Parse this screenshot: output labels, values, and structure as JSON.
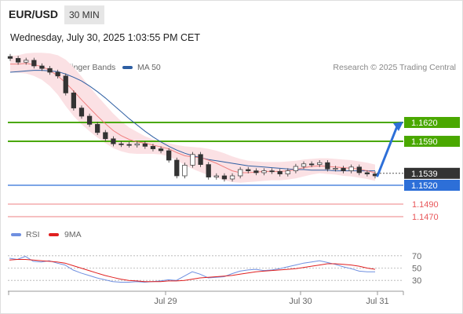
{
  "header": {
    "pair": "EUR/USD",
    "timeframe": "30 MIN",
    "datetime": "Wednesday, July 30, 2025 1:03:55 PM CET"
  },
  "legend": {
    "ma20": "MA 20 + Bollinger Bands",
    "ma50": "MA 50",
    "credit": "Research © 2025 Trading Central",
    "rsi": "RSI",
    "ma9": "9MA"
  },
  "colors": {
    "ma20": "#f08080",
    "ma50": "#2e5fa3",
    "band_fill": "#fbe1e4",
    "resistance": "#4aa800",
    "pivot": "#2d6fd8",
    "support": "#e8575a",
    "current": "#333333",
    "rsi": "#6f8fe0",
    "ma9": "#e02020"
  },
  "chart_data": [
    {
      "type": "candlestick",
      "title": "EUR/USD 30 MIN",
      "x_ticks": [
        "Jul 29",
        "Jul 30",
        "Jul 31"
      ],
      "ylim": [
        1.145,
        1.169
      ],
      "levels": [
        {
          "value": 1.162,
          "label": "1.1620",
          "kind": "resistance"
        },
        {
          "value": 1.159,
          "label": "1.1590",
          "kind": "resistance"
        },
        {
          "value": 1.1539,
          "label": "1.1539",
          "kind": "current"
        },
        {
          "value": 1.152,
          "label": "1.1520",
          "kind": "pivot"
        },
        {
          "value": 1.149,
          "label": "1.1490",
          "kind": "support"
        },
        {
          "value": 1.147,
          "label": "1.1470",
          "kind": "support"
        }
      ],
      "close_series": [
        1.1722,
        1.1716,
        1.1719,
        1.171,
        1.1706,
        1.17,
        1.1694,
        1.1667,
        1.1643,
        1.163,
        1.1617,
        1.1604,
        1.1594,
        1.1586,
        1.1585,
        1.1584,
        1.1586,
        1.1582,
        1.1578,
        1.1575,
        1.156,
        1.1535,
        1.1552,
        1.1569,
        1.1553,
        1.1533,
        1.1535,
        1.153,
        1.1535,
        1.1545,
        1.1543,
        1.154,
        1.1543,
        1.1542,
        1.1538,
        1.1543,
        1.155,
        1.1554,
        1.1553,
        1.1556,
        1.1546,
        1.1547,
        1.1543,
        1.1549,
        1.154,
        1.1538,
        1.1535
      ],
      "ma20_series": [
        1.1713,
        1.1713,
        1.1714,
        1.1712,
        1.1709,
        1.1703,
        1.1694,
        1.1683,
        1.167,
        1.1656,
        1.1643,
        1.163,
        1.1618,
        1.1607,
        1.1599,
        1.1593,
        1.1589,
        1.1587,
        1.1584,
        1.1581,
        1.1578,
        1.1572,
        1.1567,
        1.1565,
        1.1564,
        1.156,
        1.1555,
        1.1549,
        1.1543,
        1.154,
        1.154,
        1.1541,
        1.1542,
        1.1542,
        1.1542,
        1.1543,
        1.1545,
        1.1548,
        1.155,
        1.1551,
        1.155,
        1.1549,
        1.1548,
        1.1547,
        1.1546,
        1.1543,
        1.154
      ],
      "ma50_series": [
        1.17,
        1.1701,
        1.1702,
        1.1703,
        1.1703,
        1.1702,
        1.1701,
        1.1697,
        1.1692,
        1.1686,
        1.1678,
        1.1669,
        1.1659,
        1.1648,
        1.1637,
        1.1626,
        1.1616,
        1.1606,
        1.1597,
        1.1589,
        1.1582,
        1.1576,
        1.1571,
        1.1567,
        1.1564,
        1.1561,
        1.1559,
        1.1557,
        1.1555,
        1.1553,
        1.1551,
        1.155,
        1.1549,
        1.1548,
        1.1547,
        1.1546,
        1.1545,
        1.1545,
        1.1544,
        1.1544,
        1.1544,
        1.1543,
        1.1543,
        1.1543,
        1.1543,
        1.1543,
        1.1543
      ],
      "bb_upper_series": [
        1.1726,
        1.1727,
        1.173,
        1.1731,
        1.1731,
        1.173,
        1.1727,
        1.172,
        1.1708,
        1.1693,
        1.1677,
        1.1662,
        1.1648,
        1.1634,
        1.1622,
        1.1612,
        1.1605,
        1.1598,
        1.1593,
        1.1589,
        1.1587,
        1.1584,
        1.1582,
        1.1581,
        1.158,
        1.1578,
        1.1575,
        1.1571,
        1.1566,
        1.1562,
        1.1559,
        1.1558,
        1.1557,
        1.1557,
        1.1557,
        1.1558,
        1.1559,
        1.1561,
        1.1562,
        1.1563,
        1.1563,
        1.1562,
        1.1561,
        1.156,
        1.1558,
        1.1556,
        1.1553
      ],
      "bb_lower_series": [
        1.17,
        1.1699,
        1.1698,
        1.1694,
        1.1688,
        1.1678,
        1.1664,
        1.1646,
        1.163,
        1.1617,
        1.1606,
        1.1596,
        1.1587,
        1.1579,
        1.1574,
        1.1571,
        1.157,
        1.157,
        1.157,
        1.1569,
        1.1566,
        1.156,
        1.1552,
        1.1546,
        1.1541,
        1.1536,
        1.1532,
        1.1528,
        1.1525,
        1.1524,
        1.1525,
        1.1526,
        1.1527,
        1.1528,
        1.1528,
        1.1529,
        1.1531,
        1.1534,
        1.1537,
        1.1539,
        1.1538,
        1.1537,
        1.1535,
        1.1534,
        1.1532,
        1.153,
        1.1527
      ],
      "forecast": {
        "from": 1.1535,
        "to": 1.162
      }
    },
    {
      "type": "line",
      "ylim": [
        20,
        80
      ],
      "y_ticks": [
        "70",
        "50",
        "30"
      ],
      "series": [
        {
          "name": "RSI",
          "values": [
            66,
            64,
            69,
            61,
            60,
            62,
            58,
            55,
            47,
            42,
            38,
            34,
            31,
            28,
            27,
            27,
            28,
            27,
            28,
            29,
            31,
            30,
            37,
            44,
            40,
            34,
            35,
            36,
            41,
            45,
            47,
            48,
            46,
            47,
            49,
            52,
            55,
            58,
            60,
            62,
            59,
            56,
            52,
            49,
            45,
            44,
            44
          ]
        },
        {
          "name": "9MA",
          "values": [
            63,
            64,
            64,
            63,
            62,
            61,
            60,
            58,
            54,
            50,
            46,
            42,
            38,
            35,
            32,
            30,
            29,
            28,
            28,
            28,
            29,
            29,
            30,
            32,
            34,
            35,
            36,
            37,
            38,
            40,
            42,
            44,
            45,
            46,
            47,
            48,
            49,
            51,
            53,
            55,
            57,
            57,
            56,
            55,
            53,
            50,
            48
          ]
        }
      ]
    }
  ]
}
